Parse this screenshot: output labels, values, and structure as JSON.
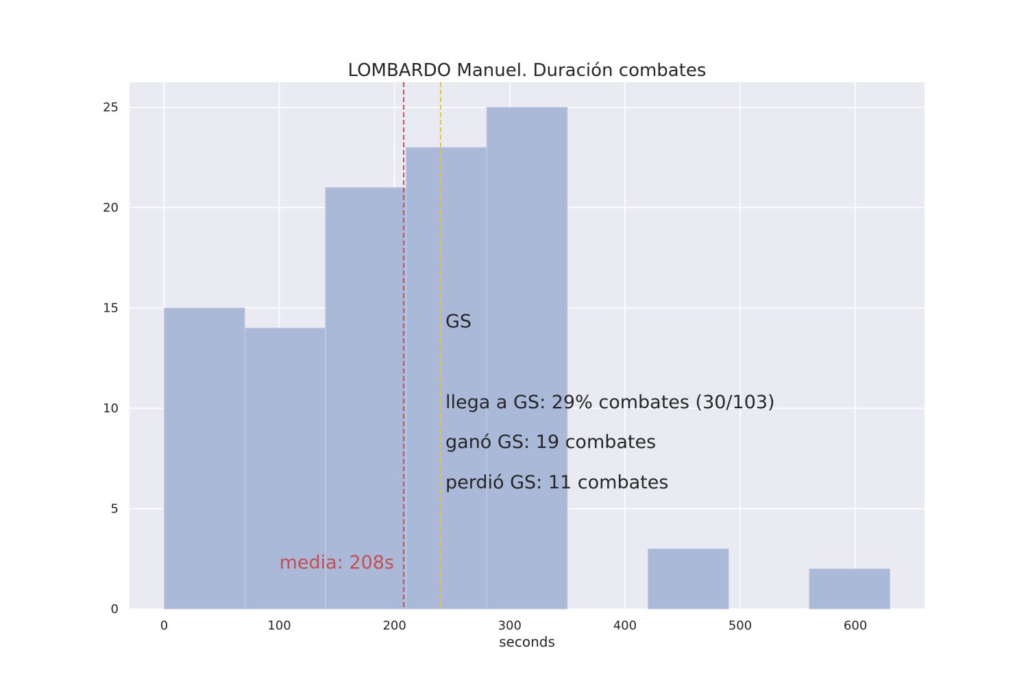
{
  "chart_data": {
    "type": "bar",
    "title": "LOMBARDO Manuel. Duración combates",
    "xlabel": "seconds",
    "ylabel": "",
    "xlim": [
      -30,
      660
    ],
    "ylim": [
      0,
      26.25
    ],
    "xticks": [
      0,
      100,
      200,
      300,
      400,
      500,
      600
    ],
    "yticks": [
      0,
      5,
      10,
      15,
      20,
      25
    ],
    "grid": true,
    "bins": [
      {
        "x0": 0,
        "x1": 70,
        "count": 15
      },
      {
        "x0": 70,
        "x1": 140,
        "count": 14
      },
      {
        "x0": 140,
        "x1": 210,
        "count": 21
      },
      {
        "x0": 210,
        "x1": 280,
        "count": 23
      },
      {
        "x0": 280,
        "x1": 350,
        "count": 25
      },
      {
        "x0": 350,
        "x1": 420,
        "count": 0
      },
      {
        "x0": 420,
        "x1": 490,
        "count": 3
      },
      {
        "x0": 490,
        "x1": 560,
        "count": 0
      },
      {
        "x0": 560,
        "x1": 630,
        "count": 2
      }
    ],
    "mean_line": {
      "x": 208,
      "label": "media: 208s",
      "color": "#c44e52"
    },
    "gs_line": {
      "x": 240,
      "label": "GS",
      "color": "#e5c62a"
    },
    "annotations": [
      "llega a GS: 29% combates (30/103)",
      "ganó GS: 19 combates",
      "perdió GS: 11 combates"
    ],
    "colors": {
      "bar": "#a9b9d7",
      "background": "#eaeaf2",
      "grid": "#ffffff",
      "mean": "#c44e52",
      "gs": "#e5c62a"
    }
  }
}
